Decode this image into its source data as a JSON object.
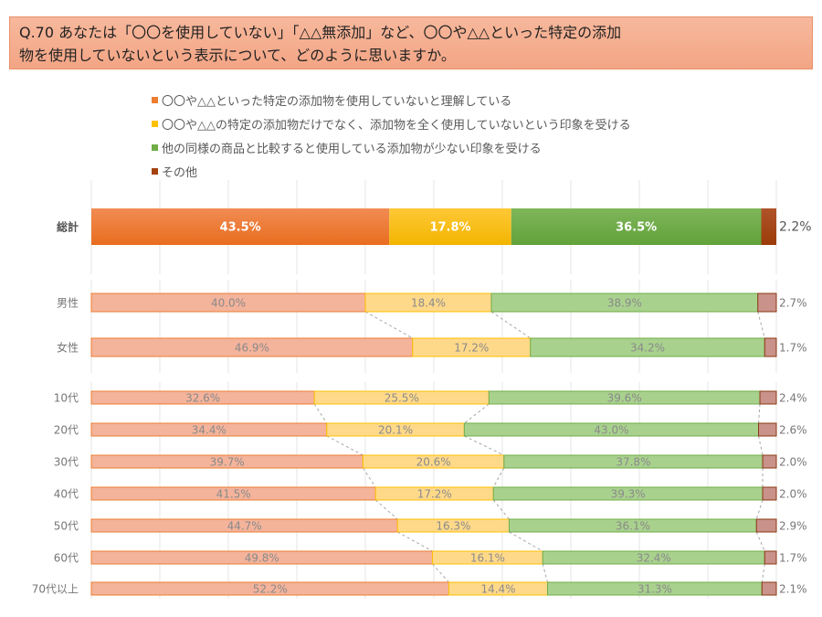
{
  "title": "Q.70 あなたは「〇〇を使用していない」「△△無添加」など、〇〇や△△といった特定の添加物を使用していないという表示について、どのように思いますか。",
  "title_lines": [
    "Q.70 あなたは「〇〇を使用していない」「△△無添加」など、〇〇や△△といった特定の添加",
    "物を使用していないという表示について、どのように思いますか。"
  ],
  "chart_data": {
    "type": "bar",
    "orientation": "horizontal",
    "stacked": "percent",
    "title": "Q.70 あなたは「〇〇を使用していない」「△△無添加」など、〇〇や△△といった特定の添加物を使用していないという表示について、どのように思いますか。",
    "xlabel": "",
    "ylabel": "",
    "xlim": [
      0,
      100
    ],
    "grid": true,
    "legend_position": "top",
    "categories": [
      "総計",
      "男性",
      "女性",
      "10代",
      "20代",
      "30代",
      "40代",
      "50代",
      "60代",
      "70代以上"
    ],
    "groups": [
      {
        "name": "total",
        "categories": [
          "総計"
        ]
      },
      {
        "name": "gender",
        "categories": [
          "男性",
          "女性"
        ]
      },
      {
        "name": "age",
        "categories": [
          "10代",
          "20代",
          "30代",
          "40代",
          "50代",
          "60代",
          "70代以上"
        ]
      }
    ],
    "series": [
      {
        "name": "〇〇や△△といった特定の添加物を使用していないと理解している",
        "color": "#ed7d31",
        "light_color": "#f4b39b",
        "values": [
          43.5,
          40.0,
          46.9,
          32.6,
          34.4,
          39.7,
          41.5,
          44.7,
          49.8,
          52.2
        ]
      },
      {
        "name": "〇〇や△△の特定の添加物だけでなく、添加物を全く使用していないという印象を受ける",
        "color": "#ffc000",
        "light_color": "#ffd98a",
        "values": [
          17.8,
          18.4,
          17.2,
          25.5,
          20.1,
          20.6,
          17.2,
          16.3,
          16.1,
          14.4
        ]
      },
      {
        "name": "他の同様の商品と比較すると使用している添加物が少ない印象を受ける",
        "color": "#70ad47",
        "light_color": "#a9d18e",
        "values": [
          36.5,
          38.9,
          34.2,
          39.6,
          43.0,
          37.8,
          39.3,
          36.1,
          32.4,
          31.3
        ]
      },
      {
        "name": "その他",
        "color": "#a5420e",
        "light_color": "#c9928a",
        "values": [
          2.2,
          2.7,
          1.7,
          2.4,
          2.6,
          2.0,
          2.0,
          2.9,
          1.7,
          2.1
        ]
      }
    ],
    "value_labels": [
      [
        "43.5%",
        "17.8%",
        "36.5%",
        "2.2%"
      ],
      [
        "40.0%",
        "18.4%",
        "38.9%",
        "2.7%"
      ],
      [
        "46.9%",
        "17.2%",
        "34.2%",
        "1.7%"
      ],
      [
        "32.6%",
        "25.5%",
        "39.6%",
        "2.4%"
      ],
      [
        "34.4%",
        "20.1%",
        "43.0%",
        "2.6%"
      ],
      [
        "39.7%",
        "20.6%",
        "37.8%",
        "2.0%"
      ],
      [
        "41.5%",
        "17.2%",
        "39.3%",
        "2.0%"
      ],
      [
        "44.7%",
        "16.3%",
        "36.1%",
        "2.9%"
      ],
      [
        "49.8%",
        "16.1%",
        "32.4%",
        "1.7%"
      ],
      [
        "52.2%",
        "14.4%",
        "31.3%",
        "2.1%"
      ]
    ],
    "series_lines": "dashed connectors between adjacent bars within a group",
    "highlighted_category": "総計"
  }
}
